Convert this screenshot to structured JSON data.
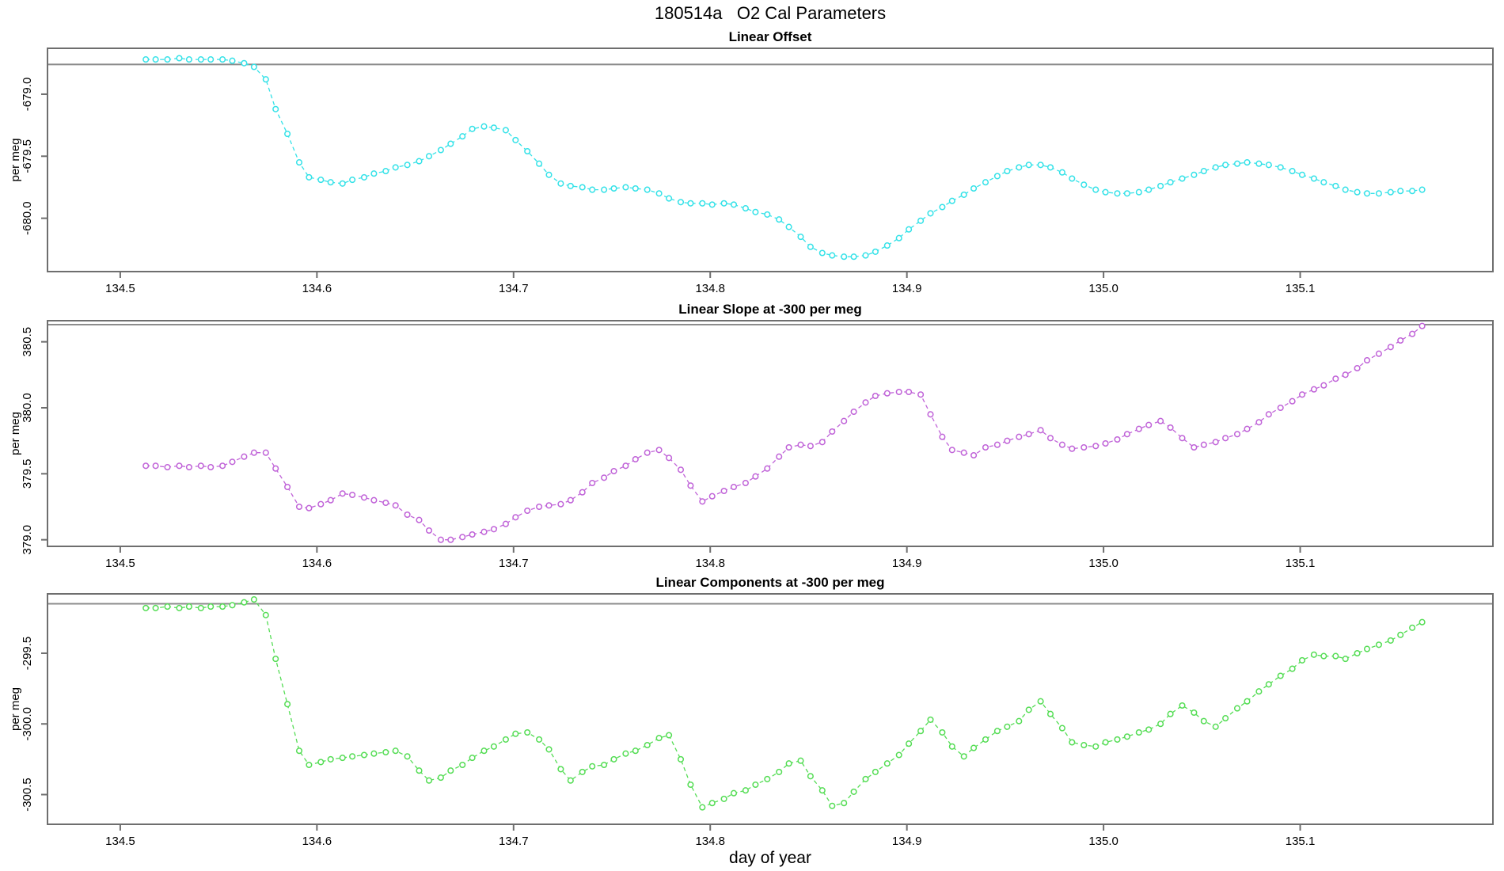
{
  "title": "180514a   O2 Cal Parameters",
  "x_axis_title": "day of year",
  "colors": {
    "offset_series": "#35e2e8",
    "slope_series": "#c063d8",
    "components_series": "#55dd55",
    "reference_line": "#8c8c8c",
    "frame": "#6e6e6e",
    "text": "#000000",
    "background": "#ffffff"
  },
  "chart_data": {
    "type": "scatter",
    "xlabel": "day of year",
    "xlim": [
      134.463,
      135.198
    ],
    "x_ticks": [
      134.5,
      134.6,
      134.7,
      134.8,
      134.9,
      135.0,
      135.1
    ],
    "x": [
      134.513,
      134.518,
      134.524,
      134.53,
      134.535,
      134.541,
      134.546,
      134.552,
      134.557,
      134.563,
      134.568,
      134.574,
      134.579,
      134.585,
      134.591,
      134.596,
      134.602,
      134.607,
      134.613,
      134.618,
      134.624,
      134.629,
      134.635,
      134.64,
      134.646,
      134.652,
      134.657,
      134.663,
      134.668,
      134.674,
      134.679,
      134.685,
      134.69,
      134.696,
      134.701,
      134.707,
      134.713,
      134.718,
      134.724,
      134.729,
      134.735,
      134.74,
      134.746,
      134.751,
      134.757,
      134.762,
      134.768,
      134.774,
      134.779,
      134.785,
      134.79,
      134.796,
      134.801,
      134.807,
      134.812,
      134.818,
      134.823,
      134.829,
      134.835,
      134.84,
      134.846,
      134.851,
      134.857,
      134.862,
      134.868,
      134.873,
      134.879,
      134.884,
      134.89,
      134.896,
      134.901,
      134.907,
      134.912,
      134.918,
      134.923,
      134.929,
      134.934,
      134.94,
      134.946,
      134.951,
      134.957,
      134.962,
      134.968,
      134.973,
      134.979,
      134.984,
      134.99,
      134.996,
      135.001,
      135.007,
      135.012,
      135.018,
      135.023,
      135.029,
      135.034,
      135.04,
      135.046,
      135.051,
      135.057,
      135.062,
      135.068,
      135.073,
      135.079,
      135.084,
      135.09,
      135.096,
      135.101,
      135.107,
      135.112,
      135.118,
      135.123,
      135.129,
      135.134,
      135.14,
      135.146,
      135.151,
      135.157,
      135.162
    ],
    "subplots": [
      {
        "title": "Linear Offset",
        "ylabel": "per meg",
        "series_color_key": "offset_series",
        "ylim": [
          -680.43,
          -678.63
        ],
        "y_ticks": [
          -679.0,
          -679.5,
          -680.0
        ],
        "ref_line": -678.76,
        "values": [
          -678.72,
          -678.72,
          -678.72,
          -678.71,
          -678.72,
          -678.72,
          -678.72,
          -678.72,
          -678.73,
          -678.75,
          -678.78,
          -678.88,
          -679.12,
          -679.32,
          -679.55,
          -679.67,
          -679.69,
          -679.71,
          -679.72,
          -679.69,
          -679.67,
          -679.64,
          -679.62,
          -679.59,
          -679.57,
          -679.54,
          -679.5,
          -679.45,
          -679.4,
          -679.34,
          -679.28,
          -679.26,
          -679.27,
          -679.29,
          -679.37,
          -679.46,
          -679.56,
          -679.65,
          -679.72,
          -679.74,
          -679.75,
          -679.77,
          -679.77,
          -679.76,
          -679.75,
          -679.76,
          -679.77,
          -679.8,
          -679.84,
          -679.87,
          -679.88,
          -679.88,
          -679.89,
          -679.88,
          -679.89,
          -679.92,
          -679.95,
          -679.97,
          -680.01,
          -680.07,
          -680.15,
          -680.23,
          -680.28,
          -680.3,
          -680.31,
          -680.31,
          -680.3,
          -680.27,
          -680.22,
          -680.16,
          -680.09,
          -680.02,
          -679.96,
          -679.91,
          -679.86,
          -679.81,
          -679.76,
          -679.71,
          -679.66,
          -679.62,
          -679.59,
          -679.57,
          -679.57,
          -679.59,
          -679.63,
          -679.68,
          -679.73,
          -679.77,
          -679.79,
          -679.8,
          -679.8,
          -679.79,
          -679.77,
          -679.74,
          -679.71,
          -679.68,
          -679.65,
          -679.62,
          -679.59,
          -679.57,
          -679.56,
          -679.55,
          -679.56,
          -679.57,
          -679.59,
          -679.62,
          -679.65,
          -679.68,
          -679.71,
          -679.74,
          -679.77,
          -679.79,
          -679.8,
          -679.8,
          -679.79,
          -679.78,
          -679.78,
          -679.77
        ]
      },
      {
        "title": "Linear Slope at -300 per meg",
        "ylabel": "per meg",
        "series_color_key": "slope_series",
        "ylim": [
          378.95,
          380.66
        ],
        "y_ticks": [
          379.0,
          379.5,
          380.0,
          380.5
        ],
        "ref_line": 380.63,
        "values": [
          379.56,
          379.56,
          379.55,
          379.56,
          379.55,
          379.56,
          379.55,
          379.56,
          379.59,
          379.63,
          379.66,
          379.66,
          379.54,
          379.4,
          379.25,
          379.24,
          379.27,
          379.3,
          379.35,
          379.34,
          379.32,
          379.3,
          379.28,
          379.26,
          379.19,
          379.15,
          379.07,
          379.0,
          379.0,
          379.02,
          379.04,
          379.06,
          379.08,
          379.12,
          379.17,
          379.22,
          379.25,
          379.26,
          379.27,
          379.3,
          379.36,
          379.43,
          379.47,
          379.52,
          379.56,
          379.61,
          379.66,
          379.68,
          379.62,
          379.53,
          379.41,
          379.29,
          379.33,
          379.37,
          379.4,
          379.43,
          379.48,
          379.54,
          379.63,
          379.7,
          379.72,
          379.71,
          379.74,
          379.82,
          379.9,
          379.97,
          380.04,
          380.09,
          380.11,
          380.12,
          380.12,
          380.1,
          379.95,
          379.78,
          379.68,
          379.66,
          379.64,
          379.7,
          379.72,
          379.75,
          379.78,
          379.8,
          379.83,
          379.77,
          379.72,
          379.69,
          379.7,
          379.71,
          379.73,
          379.76,
          379.8,
          379.84,
          379.87,
          379.9,
          379.85,
          379.77,
          379.7,
          379.72,
          379.74,
          379.77,
          379.8,
          379.84,
          379.89,
          379.95,
          380.0,
          380.05,
          380.1,
          380.14,
          380.17,
          380.22,
          380.25,
          380.3,
          380.36,
          380.41,
          380.46,
          380.51,
          380.56,
          380.62
        ]
      },
      {
        "title": "Linear Components at -300 per meg",
        "ylabel": "per meg",
        "series_color_key": "components_series",
        "ylim": [
          -300.71,
          -299.08
        ],
        "y_ticks": [
          -299.5,
          -300.0,
          -300.5
        ],
        "ref_line": -299.15,
        "values": [
          -299.18,
          -299.18,
          -299.17,
          -299.18,
          -299.17,
          -299.18,
          -299.17,
          -299.17,
          -299.16,
          -299.14,
          -299.12,
          -299.23,
          -299.54,
          -299.86,
          -300.19,
          -300.29,
          -300.27,
          -300.25,
          -300.24,
          -300.23,
          -300.22,
          -300.21,
          -300.2,
          -300.19,
          -300.23,
          -300.33,
          -300.4,
          -300.38,
          -300.33,
          -300.29,
          -300.24,
          -300.19,
          -300.16,
          -300.11,
          -300.07,
          -300.06,
          -300.11,
          -300.18,
          -300.32,
          -300.4,
          -300.34,
          -300.3,
          -300.29,
          -300.25,
          -300.21,
          -300.19,
          -300.15,
          -300.1,
          -300.08,
          -300.25,
          -300.43,
          -300.59,
          -300.56,
          -300.53,
          -300.49,
          -300.47,
          -300.43,
          -300.39,
          -300.34,
          -300.28,
          -300.26,
          -300.37,
          -300.47,
          -300.58,
          -300.56,
          -300.48,
          -300.39,
          -300.34,
          -300.28,
          -300.22,
          -300.14,
          -300.05,
          -299.97,
          -300.06,
          -300.16,
          -300.23,
          -300.17,
          -300.11,
          -300.05,
          -300.02,
          -299.98,
          -299.9,
          -299.84,
          -299.93,
          -300.03,
          -300.13,
          -300.15,
          -300.16,
          -300.13,
          -300.11,
          -300.09,
          -300.06,
          -300.04,
          -300.0,
          -299.93,
          -299.87,
          -299.92,
          -299.98,
          -300.02,
          -299.96,
          -299.89,
          -299.84,
          -299.77,
          -299.72,
          -299.66,
          -299.61,
          -299.55,
          -299.51,
          -299.52,
          -299.52,
          -299.54,
          -299.5,
          -299.47,
          -299.44,
          -299.41,
          -299.37,
          -299.32,
          -299.28
        ]
      }
    ]
  }
}
